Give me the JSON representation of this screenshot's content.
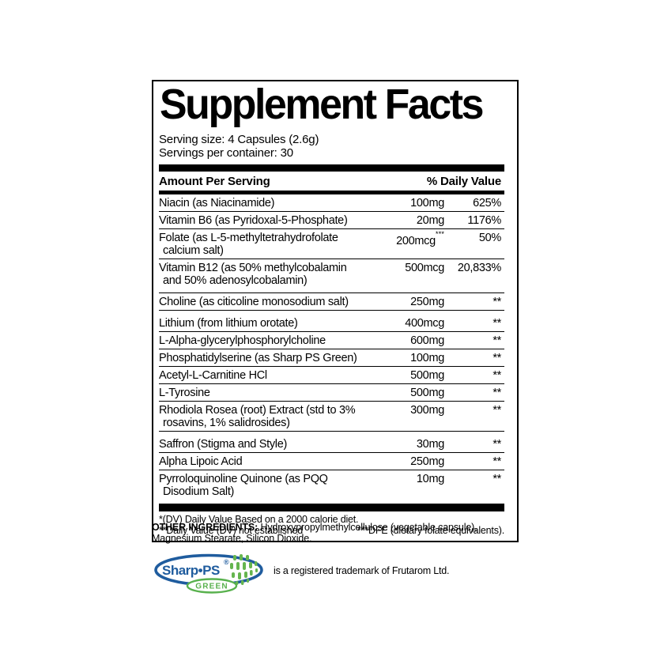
{
  "panel": {
    "title": "Supplement Facts",
    "serving_size": "Serving size: 4 Capsules (2.6g)",
    "servings_per_container": "Servings per container: 30",
    "columns": {
      "amount_header": "Amount Per Serving",
      "dv_header": "% Daily Value"
    },
    "rows": [
      {
        "name_lines": [
          "Niacin (as Niacinamide)"
        ],
        "amount": "100mg",
        "dv": "625%"
      },
      {
        "name_lines": [
          "Vitamin B6 (as Pyridoxal-5-Phosphate)"
        ],
        "amount": "20mg",
        "dv": "1176%"
      },
      {
        "name_lines": [
          "Folate (as L-5-methyltetrahydrofolate",
          "calcium salt)"
        ],
        "amount": "200mcg",
        "amount_sup": "***",
        "dv": "50%"
      },
      {
        "name_lines": [
          "Vitamin B12 (as 50% methylcobalamin",
          "and 50% adenosylcobalamin)"
        ],
        "amount": "500mcg",
        "dv": "20,833%"
      },
      {
        "name_lines": [
          "Choline (as citicoline monosodium salt)"
        ],
        "amount": "250mg",
        "dv": "**"
      },
      {
        "name_lines": [
          "Lithium (from lithium orotate)"
        ],
        "amount": "400mcg",
        "dv": "**"
      },
      {
        "name_lines": [
          "L-Alpha-glycerylphosphorylcholine"
        ],
        "amount": "600mg",
        "dv": "**"
      },
      {
        "name_lines": [
          "Phosphatidylserine (as Sharp PS Green)"
        ],
        "amount": "100mg",
        "dv": "**"
      },
      {
        "name_lines": [
          "Acetyl-L-Carnitine HCl"
        ],
        "amount": "500mg",
        "dv": "**"
      },
      {
        "name_lines": [
          "L-Tyrosine"
        ],
        "amount": "500mg",
        "dv": "**"
      },
      {
        "name_lines": [
          "Rhodiola Rosea (root) Extract (std to 3%",
          "rosavins, 1% salidrosides)"
        ],
        "amount": "300mg",
        "dv": "**"
      },
      {
        "name_lines": [
          "Saffron (Stigma and Style)"
        ],
        "amount": "30mg",
        "dv": "**"
      },
      {
        "name_lines": [
          "Alpha Lipoic Acid"
        ],
        "amount": "250mg",
        "dv": "**"
      },
      {
        "name_lines": [
          "Pyrroloquinoline Quinone (as PQQ",
          "Disodium Salt)"
        ],
        "amount": "10mg",
        "dv": "**"
      }
    ],
    "footnotes": {
      "line1": "*(DV) Daily Value Based on a 2000 calorie diet.",
      "line2_left": "**Daily Value (DV) not established",
      "line2_right": "***DFE (dietary folate equivalents)."
    }
  },
  "other_ingredients": {
    "label": "OTHER INGREDIENTS:",
    "text": " Hydroxypropylmethylcellulose (vegetable capsule), Magnesium Stearate, Silicon Dioxide."
  },
  "trademark": {
    "logo_text": "Sharp•PS",
    "logo_reg": "®",
    "logo_variant": "GREEN",
    "text": "is a registered trademark of Frutarom Ltd.",
    "blue": "#1f5c9e",
    "green": "#65b54e"
  }
}
